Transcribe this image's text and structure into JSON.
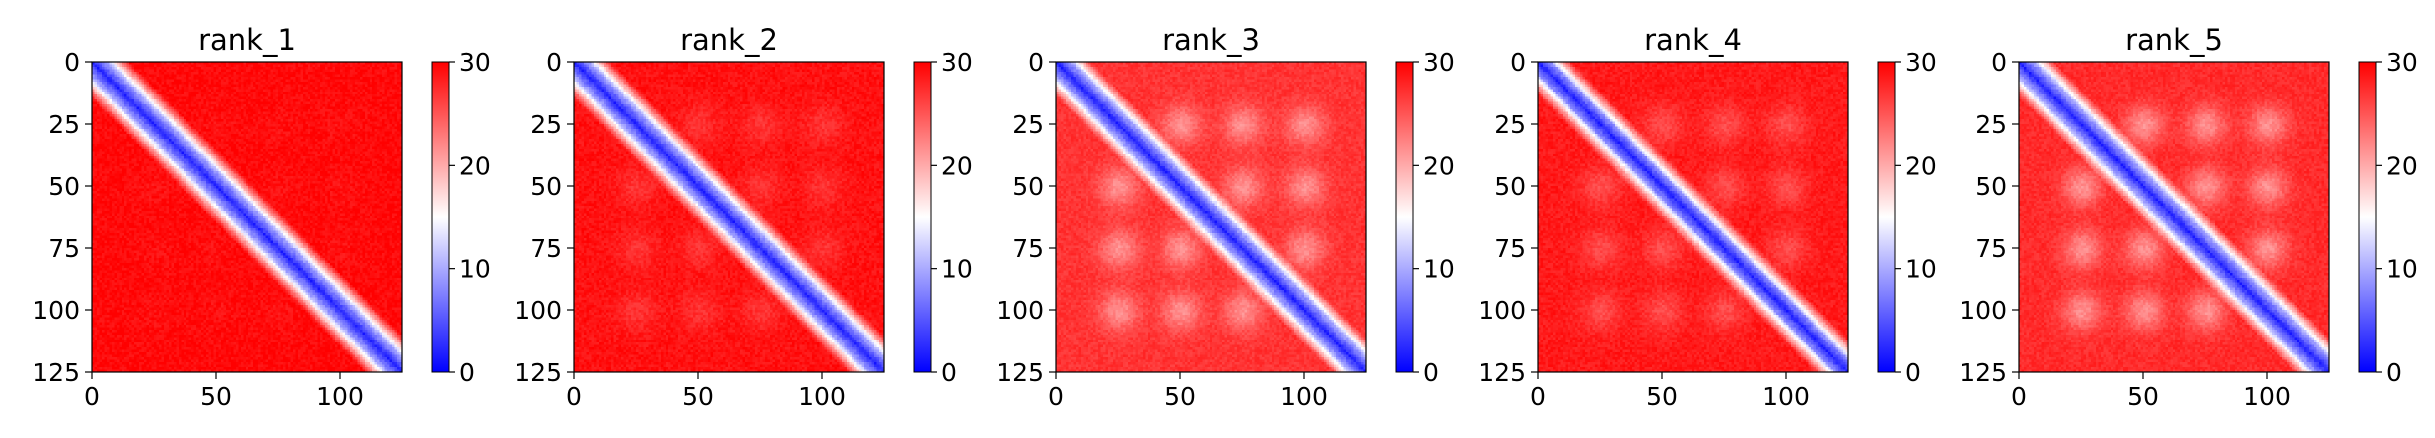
{
  "chart_data": {
    "type": "heatmap",
    "colormap": "bwr",
    "colors": {
      "low": "#0000ff",
      "mid": "#ffffff",
      "high": "#ff0000",
      "axis": "#000000"
    },
    "grid": false,
    "shared": {
      "matrix_size": 125,
      "x_ticks": [
        "0",
        "50",
        "100"
      ],
      "x_tick_values": [
        0,
        50,
        100
      ],
      "y_ticks": [
        "0",
        "25",
        "50",
        "75",
        "100",
        "125"
      ],
      "y_tick_values": [
        0,
        25,
        50,
        75,
        100,
        125
      ],
      "xlim": [
        0,
        125
      ],
      "ylim": [
        125,
        0
      ],
      "colorbar_ticks": [
        "0",
        "10",
        "20",
        "30"
      ],
      "colorbar_tick_values": [
        0,
        10,
        20,
        30
      ],
      "vmin": 0,
      "vmax": 30
    },
    "panels": [
      {
        "title": "rank_1",
        "diag_band_width": 6,
        "background_value": 29.5,
        "blob_strength": 0.5
      },
      {
        "title": "rank_2",
        "diag_band_width": 6,
        "background_value": 29.0,
        "blob_strength": 2.0
      },
      {
        "title": "rank_3",
        "diag_band_width": 6,
        "background_value": 27.0,
        "blob_strength": 5.5
      },
      {
        "title": "rank_4",
        "diag_band_width": 5,
        "background_value": 28.5,
        "blob_strength": 3.0
      },
      {
        "title": "rank_5",
        "diag_band_width": 6,
        "background_value": 27.5,
        "blob_strength": 6.0
      }
    ]
  }
}
